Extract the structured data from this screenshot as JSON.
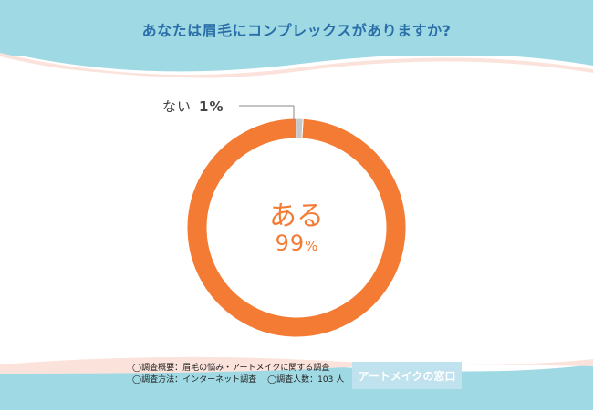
{
  "title": "あなたは眉毛にコンプレックスがありますか?",
  "chart_data": {
    "type": "pie",
    "donut": true,
    "slices": [
      {
        "label": "ある",
        "value": 99,
        "value_text": "99",
        "unit": "%",
        "color": "#f47b34"
      },
      {
        "label": "ない",
        "value": 1,
        "value_text": "1",
        "unit": "%",
        "color": "#c8c8c8"
      }
    ]
  },
  "notes": {
    "line1": "◯調査概要：眉毛の悩み・アートメイクに関する調査",
    "line2a": "◯調査方法：インターネット調査",
    "line2b": "◯調査人数：103 人"
  },
  "brand": "アートメイクの窓口",
  "colors": {
    "band": "#9fd9e4",
    "band_stripe": "#fbe3dc",
    "accent": "#f47b34",
    "title": "#2b6fa8"
  }
}
